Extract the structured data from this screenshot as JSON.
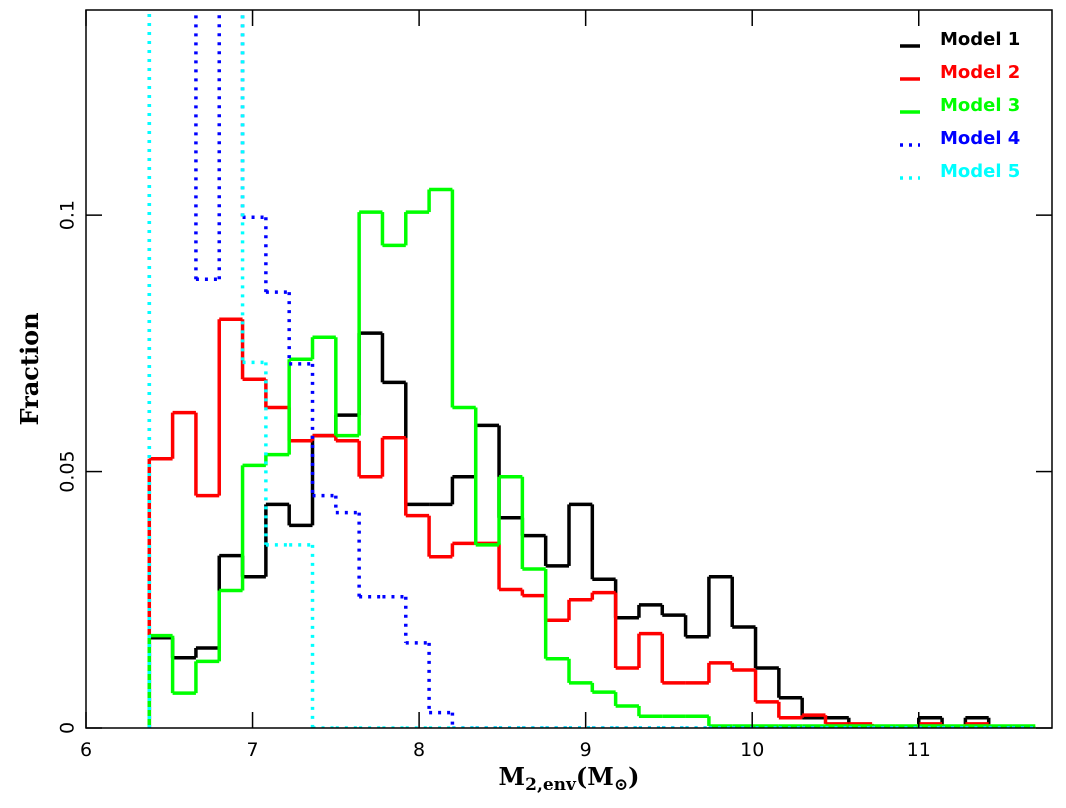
{
  "chart_data": {
    "type": "histogram",
    "xlabel": [
      {
        "text": "M"
      },
      {
        "text": "2,env",
        "sub": true
      },
      {
        "text": "(M"
      },
      {
        "text": "⊙",
        "sub": true
      },
      {
        "text": ")"
      }
    ],
    "ylabel": "Fraction",
    "xlim": [
      6,
      11.8
    ],
    "ylim": [
      0,
      0.14
    ],
    "xticks": [
      6,
      7,
      8,
      9,
      10,
      11
    ],
    "yticks": [
      0,
      0.05,
      0.1
    ],
    "legend": "upper right",
    "bins": [
      6.38,
      6.52,
      6.66,
      6.8,
      6.94,
      7.08,
      7.22,
      7.36,
      7.5,
      7.64,
      7.78,
      7.92,
      8.06,
      8.2,
      8.34,
      8.48,
      8.62,
      8.76,
      8.9,
      9.04,
      9.18,
      9.32,
      9.46,
      9.6,
      9.74,
      9.88,
      10.02,
      10.16,
      10.3,
      10.44,
      10.58,
      10.72,
      10.86,
      11.0,
      11.14,
      11.28,
      11.42,
      11.56,
      11.7
    ],
    "series": [
      {
        "name": "Model 1",
        "color": "#000000",
        "style": "solid",
        "values": [
          0.0176,
          0.0137,
          0.0156,
          0.0336,
          0.0295,
          0.0436,
          0.0395,
          0.057,
          0.061,
          0.077,
          0.0674,
          0.0436,
          0.0436,
          0.049,
          0.059,
          0.041,
          0.0375,
          0.0316,
          0.0436,
          0.029,
          0.0215,
          0.024,
          0.022,
          0.0178,
          0.0295,
          0.0197,
          0.0117,
          0.0059,
          0.002,
          0.002,
          0,
          0,
          0,
          0.002,
          0,
          0.002,
          0,
          0
        ]
      },
      {
        "name": "Model 2",
        "color": "#ff0000",
        "style": "solid",
        "values": [
          0.0525,
          0.0615,
          0.0453,
          0.0797,
          0.068,
          0.0625,
          0.056,
          0.057,
          0.056,
          0.049,
          0.0566,
          0.0414,
          0.0334,
          0.036,
          0.036,
          0.027,
          0.0258,
          0.021,
          0.025,
          0.0264,
          0.0117,
          0.0184,
          0.0088,
          0.0088,
          0.0127,
          0.0113,
          0.0051,
          0.002,
          0.0025,
          0.0008,
          0.0008,
          0,
          0,
          0.0008,
          0,
          0.0008,
          0,
          0
        ]
      },
      {
        "name": "Model 3",
        "color": "#00ff00",
        "style": "solid",
        "values": [
          0.018,
          0.0068,
          0.013,
          0.0268,
          0.0512,
          0.0533,
          0.0719,
          0.0762,
          0.057,
          0.1006,
          0.0941,
          0.1006,
          0.105,
          0.0625,
          0.0357,
          0.049,
          0.031,
          0.0135,
          0.0088,
          0.007,
          0.0043,
          0.0023,
          0.0023,
          0.0023,
          0.0004,
          0.0004,
          0.0004,
          0.0004,
          0.0004,
          0.0004,
          0.0004,
          0.0004,
          0.0004,
          0.0004,
          0.0004,
          0.0004,
          0.0004,
          0.0004
        ]
      },
      {
        "name": "Model 4",
        "color": "#0000ff",
        "style": "dotted",
        "values": [
          0.16,
          0.16,
          0.0875,
          0.16,
          0.0996,
          0.085,
          0.071,
          0.0453,
          0.042,
          0.0256,
          0.0256,
          0.0166,
          0.003,
          0,
          0,
          0,
          0,
          0,
          0,
          0,
          0,
          0,
          0,
          0,
          0,
          0,
          0,
          0,
          0,
          0,
          0,
          0,
          0,
          0,
          0,
          0,
          0,
          0
        ]
      },
      {
        "name": "Model 5",
        "color": "#00ffff",
        "style": "dotted",
        "values": [
          0.16,
          0.16,
          0.16,
          0.16,
          0.0713,
          0.0357,
          0.0357,
          0,
          0,
          0,
          0,
          0,
          0,
          0,
          0,
          0,
          0,
          0,
          0,
          0,
          0,
          0,
          0,
          0,
          0,
          0,
          0,
          0,
          0,
          0,
          0,
          0,
          0,
          0,
          0,
          0,
          0,
          0
        ]
      }
    ]
  }
}
